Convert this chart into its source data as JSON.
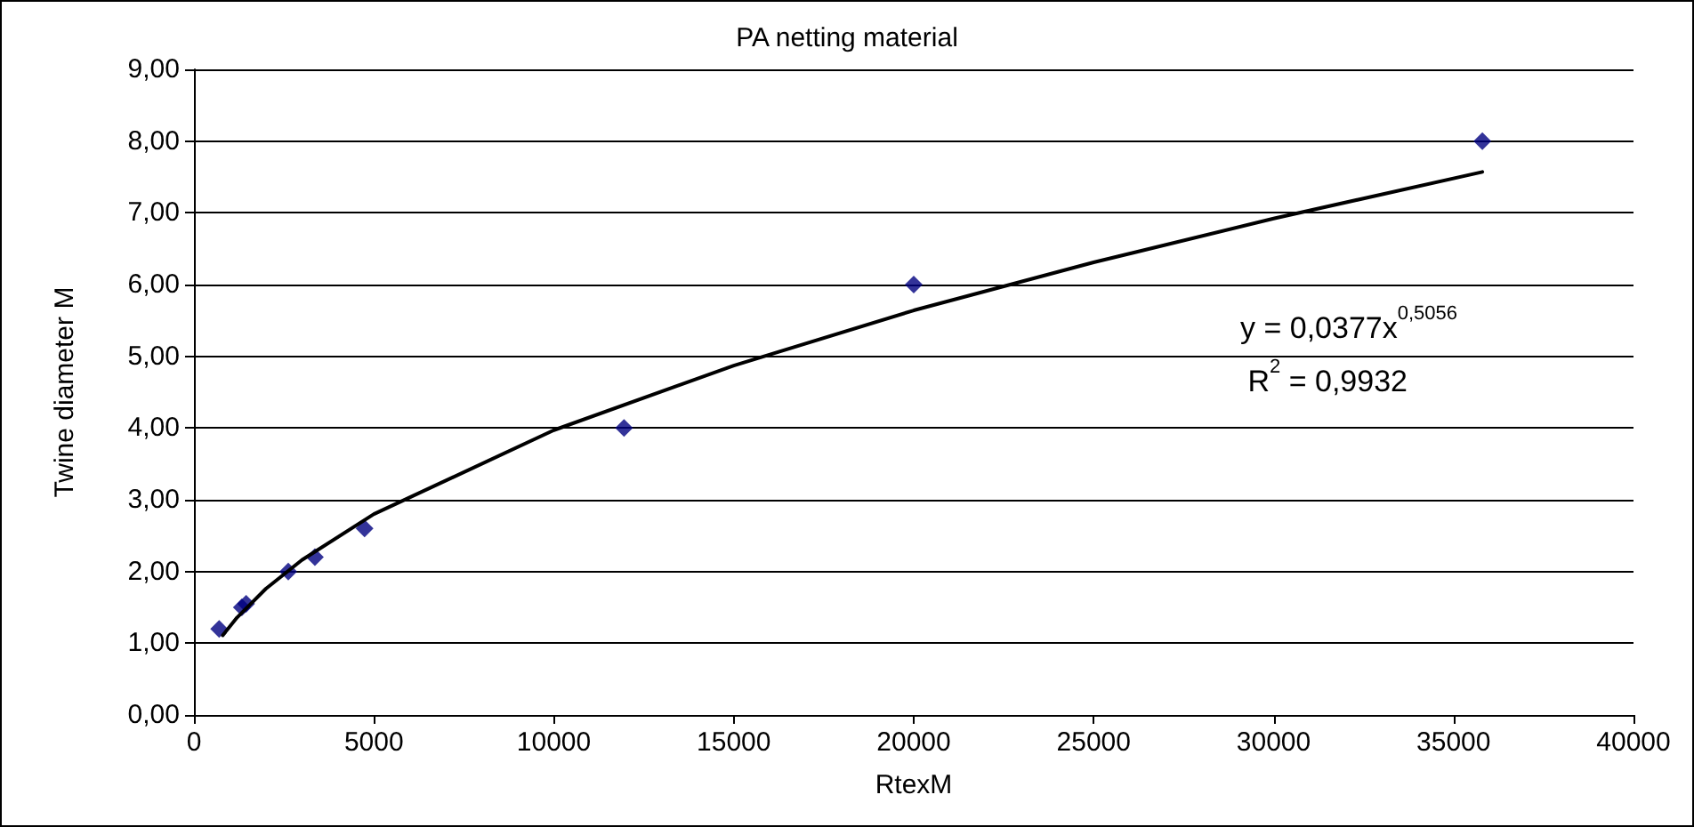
{
  "chart_data": {
    "type": "scatter",
    "title": "PA netting material",
    "xlabel": "RtexM",
    "ylabel": "Twine diameter M",
    "xlim": [
      0,
      40000
    ],
    "xticks": [
      0,
      5000,
      10000,
      15000,
      20000,
      25000,
      30000,
      35000,
      40000
    ],
    "ylim": [
      0,
      9
    ],
    "yticks": [
      {
        "value": 0,
        "label": "0,00"
      },
      {
        "value": 1,
        "label": "1,00"
      },
      {
        "value": 2,
        "label": "2,00"
      },
      {
        "value": 3,
        "label": "3,00"
      },
      {
        "value": 4,
        "label": "4,00"
      },
      {
        "value": 5,
        "label": "5,00"
      },
      {
        "value": 6,
        "label": "6,00"
      },
      {
        "value": 7,
        "label": "7,00"
      },
      {
        "value": 8,
        "label": "8,00"
      },
      {
        "value": 9,
        "label": "9,00"
      }
    ],
    "grid": "y",
    "marker": "diamond",
    "series": [
      {
        "color": "#000080",
        "x": [
          700,
          1330,
          1450,
          2620,
          3360,
          4740,
          11950,
          20000,
          35800
        ],
        "values": [
          1.2,
          1.5,
          1.55,
          2.0,
          2.2,
          2.6,
          4.0,
          6.0,
          8.0
        ]
      },
      {
        "type": "line",
        "color": "#000000",
        "marker": "none",
        "line_style": "solid",
        "x": [
          800,
          1200,
          2000,
          3000,
          5000,
          10000,
          15000,
          20000,
          25000,
          30000,
          35800
        ],
        "values": [
          1.11,
          1.36,
          1.76,
          2.16,
          2.8,
          3.97,
          4.87,
          5.64,
          6.31,
          6.92,
          7.57
        ]
      }
    ],
    "annotations": [
      "y = 0,0377x$^{0,5056}$",
      "R$^{2}$ = 0,9932"
    ]
  }
}
